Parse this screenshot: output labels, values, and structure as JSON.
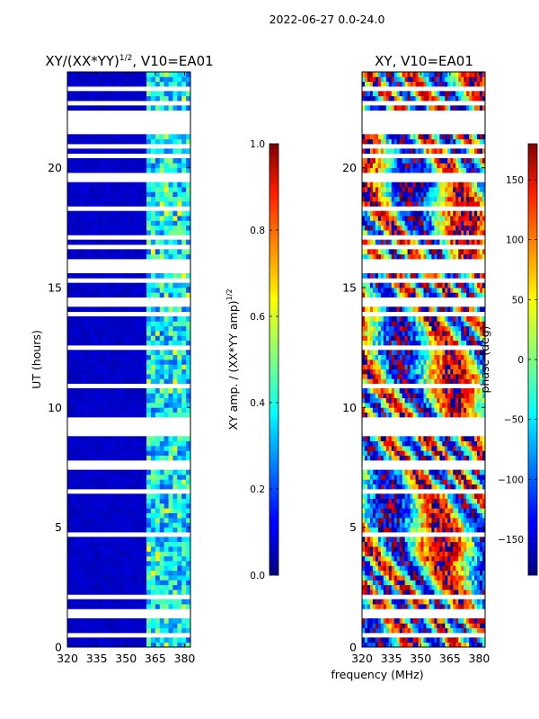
{
  "suptitle": "2022-06-27 0.0-24.0",
  "chart_data": [
    {
      "type": "heatmap",
      "title": "XY/(XX*YY)^1/2, V10=EA01",
      "title_main": "XY/(XX*YY)",
      "title_sup": "1/2",
      "title_rest": ", V10=EA01",
      "xlabel": "",
      "ylabel": "UT (hours)",
      "xlim": [
        320,
        383
      ],
      "ylim": [
        0,
        24
      ],
      "xticks": [
        320,
        335,
        350,
        365,
        380
      ],
      "yticks": [
        0,
        5,
        10,
        15,
        20
      ],
      "colorbar": {
        "label": "XY amp. / (XX*YY amp)^1/2",
        "label_main": "XY amp. / (XX*YY amp)",
        "label_sup": "1/2",
        "range": [
          0.0,
          1.0
        ],
        "ticks": [
          "0.0",
          "0.2",
          "0.4",
          "0.6",
          "0.8",
          "1.0"
        ],
        "tick_values": [
          0.0,
          0.2,
          0.4,
          0.6,
          0.8,
          1.0
        ]
      },
      "background_value": 0.05,
      "bright_band_MHz": [
        361,
        382
      ],
      "bright_band_value_range": [
        0.2,
        0.5
      ]
    },
    {
      "type": "heatmap",
      "title": "XY, V10=EA01",
      "xlabel": "frequency (MHz)",
      "ylabel": "",
      "xlim": [
        320,
        383
      ],
      "ylim": [
        0,
        24
      ],
      "xticks": [
        320,
        335,
        350,
        365,
        380
      ],
      "yticks": [
        0,
        5,
        10,
        15,
        20
      ],
      "colorbar": {
        "label": "phase (deg)",
        "range": [
          -180,
          180
        ],
        "ticks": [
          "150",
          "100",
          "50",
          "0",
          "−50",
          "−100",
          "−150"
        ],
        "tick_values": [
          150,
          100,
          50,
          0,
          -50,
          -100,
          -150
        ]
      }
    }
  ],
  "flagged_gaps_hours": [
    [
      0.5,
      0.6
    ],
    [
      1.3,
      1.7
    ],
    [
      2.0,
      2.1
    ],
    [
      3.0,
      3.05
    ],
    [
      3.8,
      3.9
    ],
    [
      4.7,
      4.8
    ],
    [
      5.0,
      5.1
    ],
    [
      6.5,
      6.55
    ],
    [
      7.5,
      7.7
    ],
    [
      8.8,
      9.1
    ],
    [
      9.3,
      9.7
    ],
    [
      10.8,
      10.9
    ],
    [
      12.4,
      12.5
    ],
    [
      13.0,
      13.05
    ],
    [
      13.8,
      13.9
    ],
    [
      14.3,
      14.5
    ],
    [
      15.2,
      15.3
    ],
    [
      15.6,
      16.2
    ],
    [
      16.6,
      16.7
    ],
    [
      17.1,
      17.2
    ],
    [
      17.8,
      17.9
    ],
    [
      18.3,
      18.4
    ],
    [
      18.8,
      18.9
    ],
    [
      19.4,
      19.9
    ],
    [
      20.4,
      20.5
    ],
    [
      20.9,
      21.0
    ],
    [
      21.4,
      22.3
    ],
    [
      22.6,
      22.8
    ],
    [
      23.2,
      23.4
    ]
  ]
}
